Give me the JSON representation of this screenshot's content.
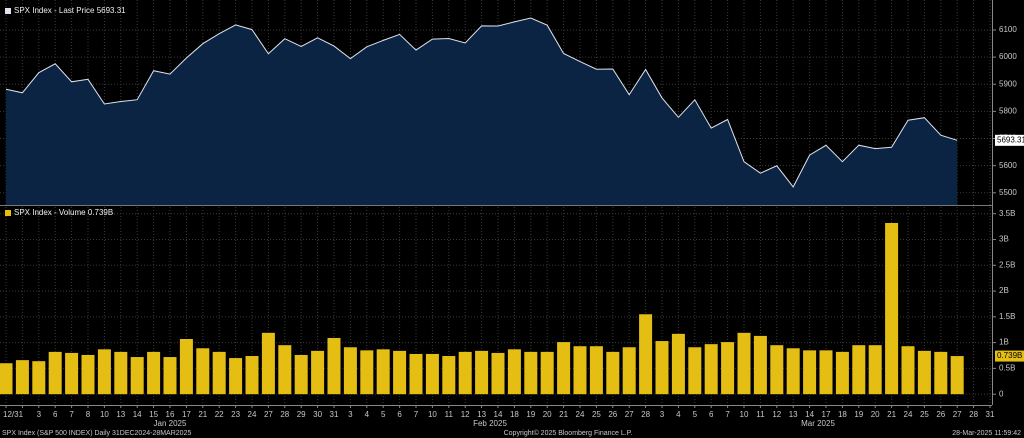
{
  "chart_data": [
    {
      "type": "area",
      "series": [
        {
          "name": "SPX Index - Last Price 5693.31",
          "color": "#dfe3ec",
          "fill": "#0c2443",
          "values": [
            5881.63,
            5868.55,
            5942.47,
            5975.38,
            5909.03,
            5918.25,
            5827.04,
            5836.22,
            5842.91,
            5949.91,
            5937.34,
            5996.66,
            6049.24,
            6086.37,
            6118.71,
            6101.24,
            6012.28,
            6067.7,
            6039.31,
            6071.17,
            6040.53,
            5994.57,
            6037.88,
            6061.48,
            6083.57,
            6025.99,
            6066.44,
            6068.5,
            6051.97,
            6115.07,
            6114.63,
            6129.58,
            6144.15,
            6117.52,
            6013.13,
            5983.25,
            5955.25,
            5956.06,
            5861.57,
            5954.5,
            5849.72,
            5778.15,
            5842.63,
            5738.52,
            5770.2,
            5614.56,
            5572.07,
            5599.3,
            5521.52,
            5638.94,
            5675.12,
            5614.66,
            5675.29,
            5662.89,
            5667.56,
            5767.57,
            5776.65,
            5712.2,
            5693.31,
            null,
            null
          ]
        }
      ],
      "ylim": [
        5455,
        6192
      ],
      "yticks": [
        5500,
        5600,
        5700,
        5800,
        5900,
        6000,
        6100
      ],
      "grid": true
    },
    {
      "type": "bar",
      "categories": [
        "12/31",
        null,
        "3",
        "6",
        "7",
        "8",
        "10",
        "13",
        "14",
        "15",
        "16",
        "17",
        "21",
        "22",
        "23",
        "24",
        "27",
        "28",
        "29",
        "30",
        "31",
        "3",
        "4",
        "5",
        "6",
        "7",
        "10",
        "11",
        "12",
        "13",
        "14",
        "18",
        "19",
        "20",
        "21",
        "24",
        "25",
        "26",
        "27",
        "28",
        "3",
        "4",
        "5",
        "6",
        "7",
        "10",
        "11",
        "12",
        "13",
        "14",
        "17",
        "18",
        "19",
        "20",
        "21",
        "24",
        "25",
        "26",
        "27",
        "28",
        "31"
      ],
      "month_labels": [
        "Jan 2025",
        "Feb 2025",
        "Mar 2025"
      ],
      "series": [
        {
          "name": "SPX Index - Volume 0.739B",
          "color": "#e5be14",
          "values": [
            0.6,
            0.66,
            0.64,
            0.82,
            0.8,
            0.76,
            0.87,
            0.82,
            0.72,
            0.82,
            0.72,
            1.07,
            0.89,
            0.82,
            0.7,
            0.74,
            1.19,
            0.95,
            0.76,
            0.84,
            1.09,
            0.91,
            0.85,
            0.87,
            0.84,
            0.78,
            0.78,
            0.74,
            0.82,
            0.84,
            0.8,
            0.87,
            0.82,
            0.82,
            1.01,
            0.93,
            0.93,
            0.82,
            0.91,
            1.55,
            1.03,
            1.17,
            0.91,
            0.97,
            1.01,
            1.19,
            1.13,
            0.95,
            0.89,
            0.85,
            0.85,
            0.82,
            0.95,
            0.95,
            3.32,
            0.93,
            0.84,
            0.82,
            0.739,
            null,
            null
          ],
          "last_value_label": "0.739B"
        }
      ],
      "ylim": [
        -0.21,
        3.63
      ],
      "yticks": [
        0,
        {
          "value": 0.5,
          "label": "0.5B"
        },
        {
          "value": 1,
          "label": "1B"
        },
        {
          "value": 1.5,
          "label": "1.5B"
        },
        {
          "value": 2,
          "label": "2B"
        },
        {
          "value": 2.5,
          "label": "2.5B"
        },
        {
          "value": 3,
          "label": "3B"
        },
        {
          "value": 3.5,
          "label": "3.5B"
        }
      ],
      "grid": true
    }
  ],
  "footer": {
    "left": "SPX Index (S&P 500 INDEX)  Daily 31DEC2024-28MAR2025",
    "center": "Copyright© 2025 Bloomberg Finance L.P.",
    "right": "28-Mar-2025 11:59:42"
  }
}
